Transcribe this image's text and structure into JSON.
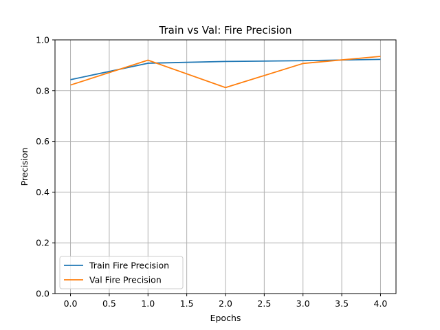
{
  "chart_data": {
    "type": "line",
    "title": "Train vs Val: Fire Precision",
    "xlabel": "Epochs",
    "ylabel": "Precision",
    "x": [
      0,
      1,
      2,
      3,
      4
    ],
    "xlim": [
      -0.2,
      4.2
    ],
    "ylim": [
      0.0,
      1.0
    ],
    "xticks": [
      "0.0",
      "0.5",
      "1.0",
      "1.5",
      "2.0",
      "2.5",
      "3.0",
      "3.5",
      "4.0"
    ],
    "yticks": [
      "0.0",
      "0.2",
      "0.4",
      "0.6",
      "0.8",
      "1.0"
    ],
    "grid": true,
    "legend_position": "lower-left",
    "series": [
      {
        "name": "Train Fire Precision",
        "color": "#1f77b4",
        "values": [
          0.843,
          0.908,
          0.915,
          0.918,
          0.923
        ]
      },
      {
        "name": "Val Fire Precision",
        "color": "#ff7f0e",
        "values": [
          0.822,
          0.92,
          0.812,
          0.907,
          0.935
        ]
      }
    ]
  }
}
